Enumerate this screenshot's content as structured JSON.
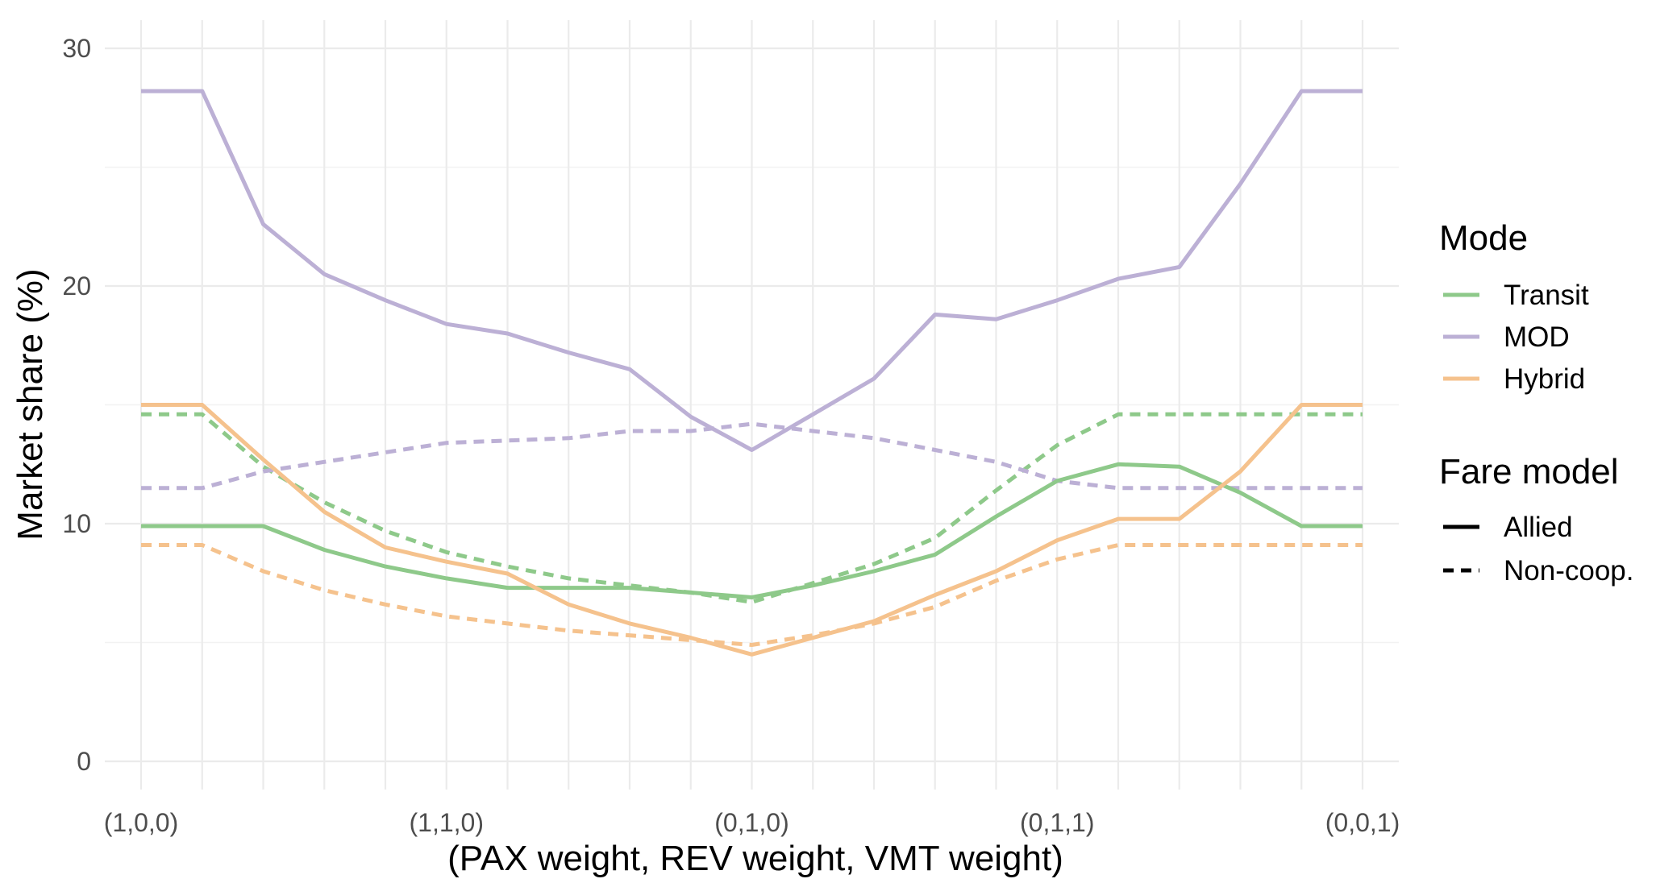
{
  "chart_data": {
    "type": "line",
    "title": "",
    "xlabel": "(PAX weight, REV weight, VMT weight)",
    "ylabel": "Market share (%)",
    "ylim": [
      0,
      30
    ],
    "y_ticks": [
      0,
      10,
      20,
      30
    ],
    "x_count": 21,
    "x_tick_labels": [
      {
        "index": 0,
        "label": "(1,0,0)"
      },
      {
        "index": 5,
        "label": "(1,1,0)"
      },
      {
        "index": 10,
        "label": "(0,1,0)"
      },
      {
        "index": 15,
        "label": "(0,1,1)"
      },
      {
        "index": 20,
        "label": "(0,0,1)"
      }
    ],
    "grid": true,
    "legend": {
      "position": "right",
      "mode_title": "Mode",
      "modes": [
        {
          "name": "Transit",
          "color": "#8ec98a"
        },
        {
          "name": "MOD",
          "color": "#bcb0d5"
        },
        {
          "name": "Hybrid",
          "color": "#f5c28d"
        }
      ],
      "fare_title": "Fare model",
      "fare_models": [
        {
          "name": "Allied",
          "dash": "solid"
        },
        {
          "name": "Non-coop.",
          "dash": "dashed"
        }
      ]
    },
    "series": [
      {
        "mode": "Transit",
        "fare": "Non-coop.",
        "values": [
          14.6,
          14.6,
          12.4,
          10.9,
          9.7,
          8.8,
          8.2,
          7.7,
          7.4,
          7.1,
          6.7,
          7.5,
          8.3,
          9.4,
          11.4,
          13.3,
          14.6,
          14.6,
          14.6,
          14.6,
          14.6
        ]
      },
      {
        "mode": "Hybrid",
        "fare": "Non-coop.",
        "values": [
          9.1,
          9.1,
          8.0,
          7.2,
          6.6,
          6.1,
          5.8,
          5.5,
          5.3,
          5.1,
          4.9,
          5.3,
          5.8,
          6.5,
          7.6,
          8.5,
          9.1,
          9.1,
          9.1,
          9.1,
          9.1
        ]
      },
      {
        "mode": "MOD",
        "fare": "Non-coop.",
        "values": [
          11.5,
          11.5,
          12.2,
          12.6,
          13.0,
          13.4,
          13.5,
          13.6,
          13.9,
          13.9,
          14.2,
          13.9,
          13.6,
          13.1,
          12.6,
          11.8,
          11.5,
          11.5,
          11.5,
          11.5,
          11.5
        ]
      },
      {
        "mode": "Transit",
        "fare": "Allied",
        "values": [
          9.9,
          9.9,
          9.9,
          8.9,
          8.2,
          7.7,
          7.3,
          7.3,
          7.3,
          7.1,
          6.9,
          7.4,
          8.0,
          8.7,
          10.3,
          11.8,
          12.5,
          12.4,
          11.3,
          9.9,
          9.9
        ]
      },
      {
        "mode": "Hybrid",
        "fare": "Allied",
        "values": [
          15.0,
          15.0,
          12.7,
          10.5,
          9.0,
          8.4,
          7.9,
          6.6,
          5.8,
          5.2,
          4.5,
          5.2,
          5.9,
          7.0,
          8.0,
          9.3,
          10.2,
          10.2,
          12.2,
          15.0,
          15.0
        ]
      },
      {
        "mode": "MOD",
        "fare": "Allied",
        "values": [
          28.2,
          28.2,
          22.6,
          20.5,
          19.4,
          18.4,
          18.0,
          17.2,
          16.5,
          14.5,
          13.1,
          14.6,
          16.1,
          18.8,
          18.6,
          19.4,
          20.3,
          20.8,
          24.3,
          28.2,
          28.2
        ]
      }
    ]
  }
}
